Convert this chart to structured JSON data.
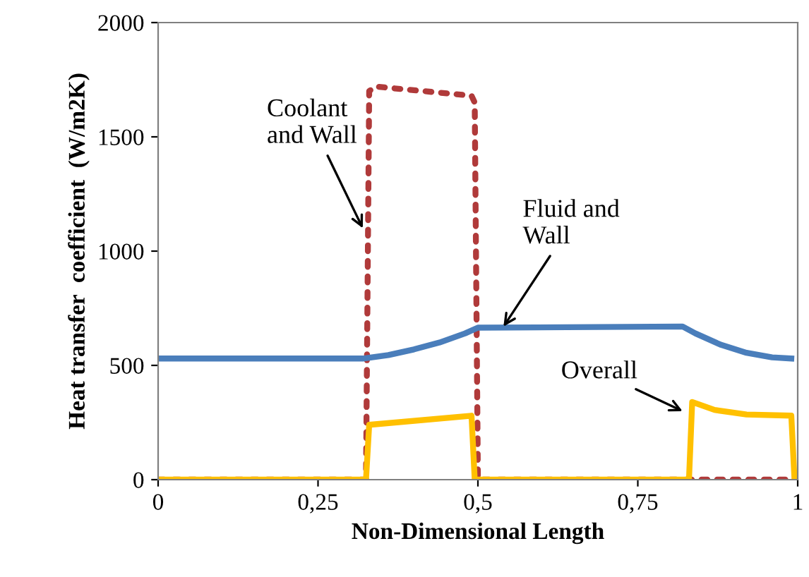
{
  "chart_data": {
    "type": "line",
    "xlabel": "Non-Dimensional Length",
    "ylabel": "Heat transfer  coefficient  (W/m2K)",
    "xlim": [
      0,
      1
    ],
    "ylim": [
      0,
      2000
    ],
    "xticks": [
      0,
      {
        "value": 0.25,
        "label": "0,25"
      },
      {
        "value": 0.5,
        "label": "0,5"
      },
      {
        "value": 0.75,
        "label": "0,75"
      },
      1
    ],
    "yticks": [
      0,
      500,
      1000,
      1500,
      2000
    ],
    "grid": false,
    "legend": false,
    "marker": "none",
    "series": [
      {
        "color": "#b03a3a",
        "line_style": "dotted",
        "x": [
          0,
          0.325,
          0.33,
          0.34,
          0.49,
          0.495,
          0.5,
          1
        ],
        "values": [
          0,
          0,
          1700,
          1720,
          1680,
          1650,
          0,
          0
        ]
      },
      {
        "color": "#4a7ebb",
        "line_style": "solid",
        "x": [
          0,
          0.32,
          0.36,
          0.4,
          0.44,
          0.48,
          0.5,
          0.82,
          0.84,
          0.88,
          0.92,
          0.96,
          0.99
        ],
        "values": [
          530,
          530,
          545,
          570,
          600,
          640,
          665,
          670,
          640,
          590,
          555,
          535,
          530
        ]
      },
      {
        "color": "#ffc000",
        "line_style": "solid",
        "x": [
          0,
          0.325,
          0.33,
          0.49,
          0.495,
          0.83,
          0.835,
          0.87,
          0.92,
          0.99,
          0.995,
          1
        ],
        "values": [
          0,
          0,
          240,
          280,
          0,
          0,
          340,
          305,
          285,
          280,
          0,
          0
        ]
      }
    ],
    "annotations": [
      {
        "text": "Coolant\nand Wall",
        "x": 0.32,
        "y": 1100
      },
      {
        "text": "Fluid and\nWall",
        "x": 0.54,
        "y": 670
      },
      {
        "text": "Overall",
        "x": 0.82,
        "y": 300
      }
    ]
  }
}
